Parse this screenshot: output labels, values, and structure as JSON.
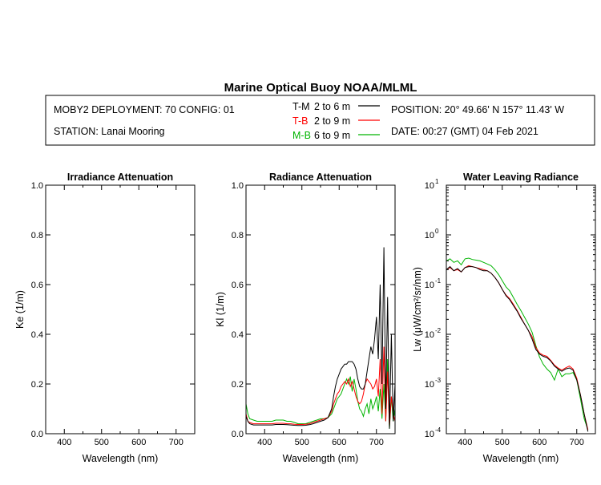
{
  "header": {
    "title": "Marine Optical Buoy NOAA/MLML",
    "deployment": "MOBY2 DEPLOYMENT: 70 CONFIG: 01",
    "station": "STATION: Lanai Mooring",
    "position": "POSITION: 20° 49.66' N   157° 11.43' W",
    "date": "DATE: 00:27 (GMT) 04 Feb 2021",
    "legend": [
      {
        "code": "T-M",
        "range": "2 to 6  m",
        "color": "#000000"
      },
      {
        "code": "T-B",
        "range": "2 to 9  m",
        "color": "#ff0000"
      },
      {
        "code": "M-B",
        "range": "6 to 9  m",
        "color": "#00b400"
      }
    ]
  },
  "chart_data": [
    {
      "type": "line",
      "title": "Irradiance Attenuation",
      "xlabel": "Wavelength (nm)",
      "ylabel": "Ke  (1/m)",
      "xlim": [
        350,
        750
      ],
      "ylim": [
        0,
        1
      ],
      "xticks": [
        400,
        500,
        600,
        700
      ],
      "xtick_labels": [
        "400",
        "500",
        "600",
        "700"
      ],
      "yticks": [
        0,
        0.2,
        0.4,
        0.6,
        0.8,
        1.0
      ],
      "ytick_labels": [
        "0.0",
        "0.2",
        "0.4",
        "0.6",
        "0.8",
        "1.0"
      ],
      "series": []
    },
    {
      "type": "line",
      "title": "Radiance Attenuation",
      "xlabel": "Wavelength (nm)",
      "ylabel": "Kl  (1/m)",
      "xlim": [
        350,
        750
      ],
      "ylim": [
        0,
        1
      ],
      "xticks": [
        400,
        500,
        600,
        700
      ],
      "xtick_labels": [
        "400",
        "500",
        "600",
        "700"
      ],
      "yticks": [
        0,
        0.2,
        0.4,
        0.6,
        0.8,
        1.0
      ],
      "ytick_labels": [
        "0.0",
        "0.2",
        "0.4",
        "0.6",
        "0.8",
        "1.0"
      ],
      "series": [
        {
          "color": "#00b400",
          "x": [
            350,
            355,
            360,
            370,
            380,
            390,
            400,
            410,
            420,
            430,
            440,
            450,
            460,
            470,
            480,
            490,
            500,
            510,
            520,
            530,
            540,
            550,
            560,
            570,
            580,
            585,
            590,
            595,
            600,
            605,
            610,
            615,
            620,
            625,
            630,
            635,
            640,
            645,
            650,
            655,
            660,
            665,
            670,
            675,
            680,
            685,
            690,
            695,
            700,
            705,
            710,
            715,
            720,
            725,
            730,
            735,
            740,
            745,
            750
          ],
          "y": [
            0.12,
            0.08,
            0.06,
            0.055,
            0.05,
            0.05,
            0.05,
            0.05,
            0.05,
            0.055,
            0.055,
            0.055,
            0.05,
            0.05,
            0.045,
            0.04,
            0.04,
            0.04,
            0.045,
            0.05,
            0.055,
            0.06,
            0.06,
            0.065,
            0.08,
            0.1,
            0.12,
            0.14,
            0.15,
            0.16,
            0.18,
            0.2,
            0.22,
            0.2,
            0.23,
            0.17,
            0.22,
            0.18,
            0.13,
            0.1,
            0.09,
            0.07,
            0.1,
            0.12,
            0.08,
            0.14,
            0.1,
            0.12,
            0.15,
            0.09,
            0.18,
            0.06,
            0.2,
            0.05,
            0.3,
            0.02,
            0.15,
            0.05,
            0.1
          ]
        },
        {
          "color": "#ff0000",
          "x": [
            350,
            355,
            360,
            370,
            380,
            390,
            400,
            410,
            420,
            430,
            440,
            450,
            460,
            470,
            480,
            490,
            500,
            510,
            520,
            530,
            540,
            550,
            560,
            570,
            580,
            585,
            590,
            595,
            600,
            605,
            610,
            615,
            620,
            625,
            630,
            635,
            640,
            645,
            650,
            655,
            660,
            665,
            670,
            675,
            680,
            685,
            690,
            695,
            700,
            705,
            710,
            715,
            720,
            725,
            730,
            735,
            740,
            745,
            750
          ],
          "y": [
            0.08,
            0.05,
            0.045,
            0.04,
            0.04,
            0.04,
            0.04,
            0.04,
            0.04,
            0.042,
            0.042,
            0.042,
            0.04,
            0.04,
            0.038,
            0.037,
            0.037,
            0.038,
            0.04,
            0.045,
            0.05,
            0.055,
            0.06,
            0.065,
            0.09,
            0.12,
            0.14,
            0.16,
            0.17,
            0.19,
            0.2,
            0.21,
            0.2,
            0.22,
            0.19,
            0.21,
            0.18,
            0.15,
            0.13,
            0.12,
            0.13,
            0.16,
            0.2,
            0.22,
            0.21,
            0.2,
            0.18,
            0.19,
            0.22,
            0.15,
            0.3,
            0.08,
            0.35,
            0.05,
            0.25,
            0.03,
            0.15,
            0.08,
            0.05
          ]
        },
        {
          "color": "#000000",
          "x": [
            350,
            355,
            360,
            370,
            380,
            390,
            400,
            410,
            420,
            430,
            440,
            450,
            460,
            470,
            480,
            490,
            500,
            510,
            520,
            530,
            540,
            550,
            560,
            570,
            580,
            585,
            590,
            595,
            600,
            605,
            610,
            615,
            620,
            625,
            630,
            635,
            640,
            645,
            650,
            655,
            660,
            665,
            670,
            675,
            680,
            685,
            690,
            695,
            700,
            705,
            710,
            715,
            720,
            725,
            730,
            735,
            740,
            745,
            750
          ],
          "y": [
            0.07,
            0.05,
            0.04,
            0.035,
            0.035,
            0.035,
            0.035,
            0.035,
            0.035,
            0.037,
            0.037,
            0.037,
            0.036,
            0.035,
            0.034,
            0.033,
            0.033,
            0.034,
            0.036,
            0.04,
            0.045,
            0.05,
            0.055,
            0.065,
            0.1,
            0.15,
            0.19,
            0.22,
            0.24,
            0.26,
            0.27,
            0.28,
            0.28,
            0.29,
            0.29,
            0.29,
            0.28,
            0.26,
            0.22,
            0.19,
            0.18,
            0.18,
            0.2,
            0.25,
            0.3,
            0.35,
            0.32,
            0.38,
            0.47,
            0.3,
            0.6,
            0.2,
            0.75,
            0.1,
            0.55,
            0.02,
            0.4,
            0.05,
            0.2
          ]
        }
      ]
    },
    {
      "type": "line",
      "title": "Water Leaving Radiance",
      "xlabel": "Wavelength (nm)",
      "ylabel": "Lw  (μW/cm²/sr/nm)",
      "xlim": [
        350,
        750
      ],
      "ylim": [
        0.0001,
        10
      ],
      "yscale": "log",
      "xticks": [
        400,
        500,
        600,
        700
      ],
      "xtick_labels": [
        "400",
        "500",
        "600",
        "700"
      ],
      "yticks": [
        0.0001,
        0.001,
        0.01,
        0.1,
        1,
        10
      ],
      "ytick_base": [
        "10",
        "10",
        "10",
        "10",
        "10",
        "10"
      ],
      "ytick_exp": [
        "-4",
        "-3",
        "-2",
        "-1",
        "0",
        "1"
      ],
      "series": [
        {
          "color": "#00b400",
          "x": [
            350,
            360,
            370,
            380,
            390,
            400,
            410,
            420,
            430,
            440,
            450,
            460,
            470,
            480,
            490,
            500,
            510,
            520,
            530,
            540,
            550,
            560,
            570,
            580,
            590,
            600,
            610,
            620,
            630,
            640,
            650,
            660,
            670,
            680,
            690,
            700,
            710,
            720,
            730
          ],
          "y": [
            0.3,
            0.33,
            0.28,
            0.3,
            0.25,
            0.33,
            0.34,
            0.32,
            0.31,
            0.3,
            0.28,
            0.26,
            0.24,
            0.2,
            0.16,
            0.12,
            0.09,
            0.075,
            0.055,
            0.04,
            0.03,
            0.022,
            0.016,
            0.011,
            0.006,
            0.0035,
            0.0025,
            0.002,
            0.0017,
            0.0012,
            0.002,
            0.0014,
            0.0016,
            0.0016,
            0.0017,
            0.0012,
            0.0005,
            0.0002,
            0.00012
          ]
        },
        {
          "color": "#ff0000",
          "x": [
            350,
            360,
            370,
            380,
            390,
            400,
            410,
            420,
            430,
            440,
            450,
            460,
            470,
            480,
            490,
            500,
            510,
            520,
            530,
            540,
            550,
            560,
            570,
            580,
            590,
            600,
            610,
            620,
            630,
            640,
            650,
            660,
            670,
            680,
            690,
            700,
            710,
            720,
            730
          ],
          "y": [
            0.2,
            0.22,
            0.19,
            0.2,
            0.18,
            0.22,
            0.24,
            0.23,
            0.22,
            0.21,
            0.2,
            0.19,
            0.17,
            0.14,
            0.11,
            0.08,
            0.062,
            0.052,
            0.04,
            0.03,
            0.022,
            0.016,
            0.012,
            0.009,
            0.0055,
            0.0042,
            0.0038,
            0.0036,
            0.003,
            0.0024,
            0.0021,
            0.0019,
            0.0021,
            0.0023,
            0.002,
            0.0013,
            0.0006,
            0.00025,
            0.00012
          ]
        },
        {
          "color": "#000000",
          "x": [
            350,
            360,
            370,
            380,
            390,
            400,
            410,
            420,
            430,
            440,
            450,
            460,
            470,
            480,
            490,
            500,
            510,
            520,
            530,
            540,
            550,
            560,
            570,
            580,
            590,
            600,
            610,
            620,
            630,
            640,
            650,
            660,
            670,
            680,
            690,
            700,
            710,
            720,
            730
          ],
          "y": [
            0.2,
            0.23,
            0.19,
            0.21,
            0.18,
            0.22,
            0.23,
            0.23,
            0.22,
            0.2,
            0.19,
            0.19,
            0.17,
            0.14,
            0.11,
            0.08,
            0.06,
            0.05,
            0.038,
            0.029,
            0.021,
            0.016,
            0.012,
            0.008,
            0.005,
            0.004,
            0.0036,
            0.0034,
            0.0029,
            0.0023,
            0.002,
            0.0018,
            0.002,
            0.0021,
            0.0019,
            0.0012,
            0.0006,
            0.00025,
            0.00011
          ]
        }
      ]
    }
  ]
}
